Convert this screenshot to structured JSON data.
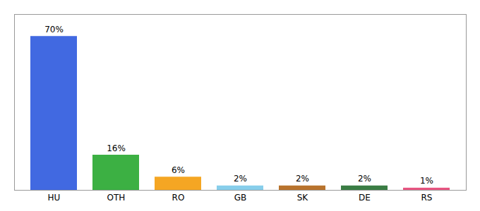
{
  "chart_data": {
    "type": "bar",
    "categories": [
      "HU",
      "OTH",
      "RO",
      "GB",
      "SK",
      "DE",
      "RS"
    ],
    "values": [
      70,
      16,
      6,
      2,
      2,
      2,
      1
    ],
    "value_labels": [
      "70%",
      "16%",
      "6%",
      "2%",
      "2%",
      "2%",
      "1%"
    ],
    "colors": [
      "#4169e1",
      "#3cb043",
      "#f5a623",
      "#87ceeb",
      "#b8732d",
      "#3a7d44",
      "#e75480"
    ],
    "ylim": [
      0,
      80
    ],
    "data_labels": true,
    "tick_labels": "x"
  }
}
